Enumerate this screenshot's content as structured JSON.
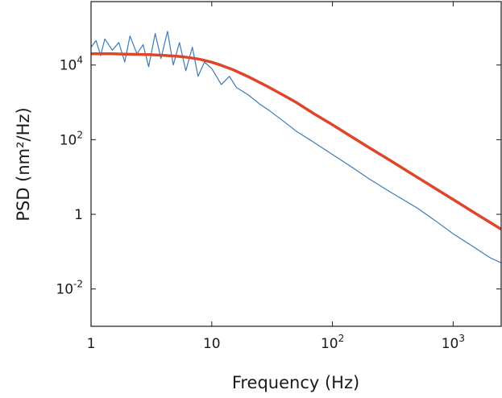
{
  "chart_data": {
    "type": "line",
    "xscale": "log",
    "yscale": "log",
    "xlabel": "Frequency (Hz)",
    "ylabel": "PSD (nm²/Hz)",
    "xlim": [
      1,
      2500
    ],
    "ylim": [
      0.001,
      500000
    ],
    "grid": false,
    "legend": "none",
    "xticks": [
      {
        "value": 1,
        "base": "1",
        "exp": ""
      },
      {
        "value": 10,
        "base": "10",
        "exp": ""
      },
      {
        "value": 100,
        "base": "10",
        "exp": "2"
      },
      {
        "value": 1000,
        "base": "10",
        "exp": "3"
      }
    ],
    "yticks": [
      {
        "value": 0.01,
        "base": "10",
        "exp": "-2"
      },
      {
        "value": 1,
        "base": "1",
        "exp": ""
      },
      {
        "value": 100,
        "base": "10",
        "exp": "2"
      },
      {
        "value": 10000,
        "base": "10",
        "exp": "4"
      }
    ],
    "series": [
      {
        "kind": "measured-psd",
        "color": "#3d7ab8",
        "x": [
          1.0,
          1.1,
          1.2,
          1.3,
          1.5,
          1.7,
          1.9,
          2.1,
          2.4,
          2.7,
          3.0,
          3.4,
          3.8,
          4.3,
          4.8,
          5.4,
          6.1,
          6.9,
          7.7,
          8.7,
          10,
          12,
          14,
          16,
          20,
          25,
          30,
          40,
          50,
          70,
          100,
          150,
          200,
          300,
          500,
          700,
          1000,
          1500,
          2000,
          2500
        ],
        "y": [
          30000,
          45000,
          18000,
          50000,
          25000,
          40000,
          12000,
          60000,
          20000,
          35000,
          9000,
          70000,
          15000,
          80000,
          10000,
          40000,
          7000,
          30000,
          5000,
          12000,
          8000,
          3000,
          5000,
          2500,
          1600,
          900,
          600,
          300,
          170,
          85,
          40,
          17,
          9,
          4,
          1.5,
          0.7,
          0.3,
          0.13,
          0.07,
          0.05
        ]
      },
      {
        "kind": "lorentzian-fit",
        "color": "#e0452b",
        "x": [
          1.0,
          1.5,
          2,
          3,
          4,
          5,
          6,
          7,
          8,
          10,
          12,
          15,
          20,
          25,
          30,
          40,
          50,
          70,
          100,
          150,
          200,
          300,
          500,
          700,
          1000,
          1500,
          2000,
          2500
        ],
        "y": [
          20000,
          20000,
          19500,
          19000,
          18200,
          17400,
          16400,
          15300,
          14200,
          11900,
          9800,
          7500,
          4900,
          3400,
          2500,
          1500,
          1000,
          500,
          250,
          110,
          62,
          28,
          10,
          5.1,
          2.5,
          1.1,
          0.62,
          0.4
        ]
      }
    ]
  }
}
